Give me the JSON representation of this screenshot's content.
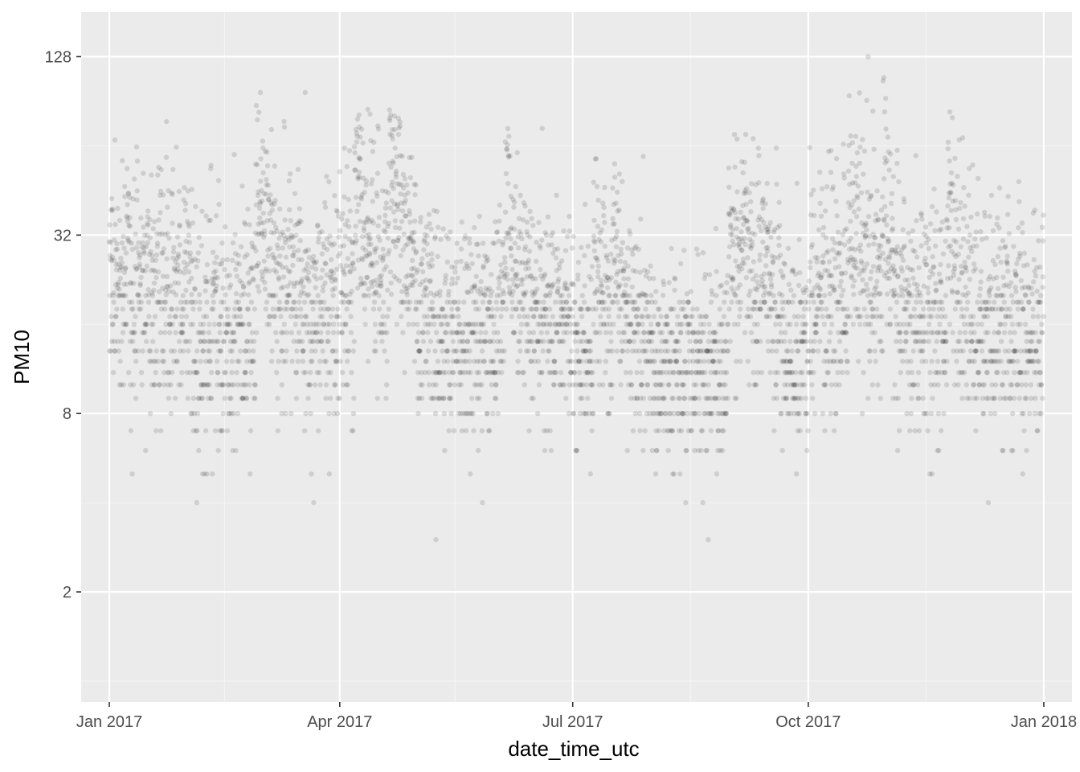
{
  "chart_data": {
    "type": "scatter",
    "xlabel": "date_time_utc",
    "ylabel": "PM10",
    "x_scale": "date",
    "y_scale": "log2",
    "xlim": [
      "2016-12-21",
      "2018-01-12"
    ],
    "ylim": [
      0.85,
      181
    ],
    "x_ticks": [
      {
        "value": "2017-01-01",
        "label": "Jan 2017"
      },
      {
        "value": "2017-04-01",
        "label": "Apr 2017"
      },
      {
        "value": "2017-07-01",
        "label": "Jul 2017"
      },
      {
        "value": "2017-10-01",
        "label": "Oct 2017"
      },
      {
        "value": "2018-01-01",
        "label": "Jan 2018"
      }
    ],
    "x_minor_ticks": [
      "2017-02-15",
      "2017-05-16",
      "2017-08-16",
      "2017-11-16"
    ],
    "y_ticks": [
      {
        "value": 2,
        "label": "2"
      },
      {
        "value": 8,
        "label": "8"
      },
      {
        "value": 32,
        "label": "32"
      },
      {
        "value": 128,
        "label": "128"
      }
    ],
    "y_minor_ticks": [
      1,
      4,
      16,
      64
    ],
    "grid": true,
    "colors": {
      "panel": "#ebebeb",
      "grid_major": "#ffffff",
      "grid_minor": "#f5f5f5",
      "point": "#000000",
      "text": "#4d4d4d"
    },
    "point_alpha": 0.12,
    "series": [
      {
        "values_by_month": [
          {
            "month": "2017-01",
            "median": 22,
            "spread": 0.95,
            "peak": 110
          },
          {
            "month": "2017-02",
            "median": 15,
            "spread": 1.0,
            "peak": 90
          },
          {
            "month": "2017-03",
            "median": 18,
            "spread": 0.95,
            "peak": 100
          },
          {
            "month": "2017-04",
            "median": 21,
            "spread": 0.85,
            "peak": 85
          },
          {
            "month": "2017-05",
            "median": 15,
            "spread": 0.8,
            "peak": 88
          },
          {
            "month": "2017-06",
            "median": 17,
            "spread": 0.8,
            "peak": 115
          },
          {
            "month": "2017-07",
            "median": 13,
            "spread": 0.8,
            "peak": 60
          },
          {
            "month": "2017-08",
            "median": 12,
            "spread": 0.8,
            "peak": 55
          },
          {
            "month": "2017-09",
            "median": 13,
            "spread": 0.85,
            "peak": 70
          },
          {
            "month": "2017-10",
            "median": 20,
            "spread": 0.9,
            "peak": 150
          },
          {
            "month": "2017-11",
            "median": 15,
            "spread": 0.9,
            "peak": 90
          },
          {
            "month": "2017-12",
            "median": 15,
            "spread": 0.9,
            "peak": 120
          }
        ]
      }
    ]
  }
}
